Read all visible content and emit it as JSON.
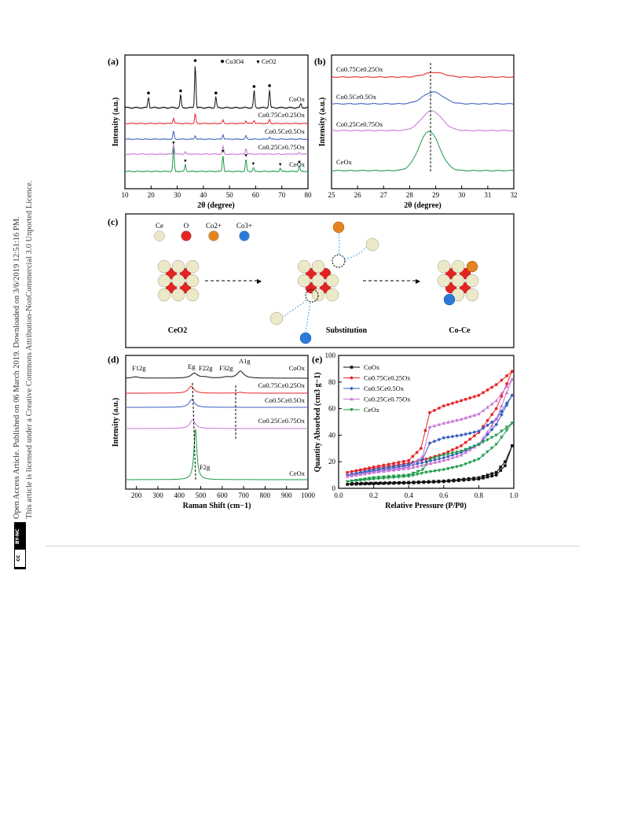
{
  "side_notice": {
    "line1": "Open Access Article. Published on 06 March 2019. Downloaded on 3/6/2019 12:51:16 PM.",
    "line2": "This article is licensed under a Creative Commons Attribution-NonCommercial 3.0 Unported Licence.",
    "badge_cc": "cc",
    "badge_by": "BY-NC"
  },
  "panels": {
    "a": {
      "label": "(a)",
      "legend_co3o4": "Co3O4",
      "legend_ceo2": "CeO2",
      "ylabel": "Intensity (a.u.)",
      "xlabel": "2θ (degree)",
      "samples": [
        "CoOx",
        "Co0.75Ce0.25Ox",
        "Co0.5Ce0.5Ox",
        "Co0.25Ce0.75Ox",
        "CeOx"
      ]
    },
    "b": {
      "label": "(b)",
      "ylabel": "Intensity (a.u.)",
      "xlabel": "2θ (degree)",
      "samples": [
        "Co0.75Ce0.25Ox",
        "Co0.5Ce0.5Ox",
        "Co0.25Ce0.75Ox",
        "CeOx"
      ]
    },
    "c": {
      "label": "(c)",
      "legend": [
        "Ce",
        "O",
        "Co2+",
        "Co3+"
      ],
      "captions": [
        "CeO2",
        "Substitution",
        "Co-Ce"
      ]
    },
    "d": {
      "label": "(d)",
      "ylabel": "Intensity (a.u.)",
      "xlabel": "Raman Shift (cm−1)",
      "modes": [
        "F12g",
        "Eg",
        "F22g",
        "F32g",
        "A1g",
        "F2g"
      ],
      "samples": [
        "CoOx",
        "Co0.75Ce0.25Ox",
        "Co0.5Ce0.5Ox",
        "Co0.25Ce0.75Ox",
        "CeOx"
      ]
    },
    "e": {
      "label": "(e)",
      "ylabel": "Quantity Absorbed (cm3 g−1)",
      "xlabel": "Relative Pressure (P/P0)",
      "samples": [
        "CoOx",
        "Co0.75Ce0.25Ox",
        "Co0.5Ce0.5Ox",
        "Co0.25Ce0.75Ox",
        "CeOx"
      ]
    }
  },
  "colors": {
    "black": "#111111",
    "red": "#e8262b",
    "blue": "#3a5fbf",
    "purple": "#c774d6",
    "green": "#1e9a4a",
    "ce_sphere": "#ebe9c8",
    "o_sphere": "#e32222",
    "co2_sphere": "#e5841f",
    "co3_sphere": "#2a7bd8"
  },
  "chart_data": [
    {
      "id": "a",
      "type": "line",
      "xlabel": "2θ (degree)",
      "ylabel": "Intensity (a.u.)",
      "xlim": [
        10,
        80
      ],
      "xticks": [
        10,
        20,
        30,
        40,
        50,
        60,
        70,
        80
      ],
      "series": [
        {
          "name": "CoOx",
          "peaks": [
            [
              19.0,
              0.25
            ],
            [
              31.3,
              0.3
            ],
            [
              36.9,
              1.0
            ],
            [
              44.8,
              0.25
            ],
            [
              59.4,
              0.4
            ],
            [
              65.3,
              0.42
            ],
            [
              77.3,
              0.1
            ]
          ]
        },
        {
          "name": "Co0.75Ce0.25Ox",
          "peaks": [
            [
              28.6,
              0.2
            ],
            [
              36.9,
              0.35
            ],
            [
              47.5,
              0.12
            ],
            [
              56.3,
              0.1
            ],
            [
              59.4,
              0.12
            ],
            [
              65.3,
              0.15
            ]
          ]
        },
        {
          "name": "Co0.5Ce0.5Ox",
          "peaks": [
            [
              28.6,
              0.35
            ],
            [
              36.9,
              0.15
            ],
            [
              47.5,
              0.2
            ],
            [
              56.3,
              0.15
            ],
            [
              65.3,
              0.1
            ]
          ]
        },
        {
          "name": "Co0.25Ce0.75Ox",
          "peaks": [
            [
              28.6,
              0.45
            ],
            [
              33.1,
              0.1
            ],
            [
              47.5,
              0.35
            ],
            [
              56.3,
              0.25
            ],
            [
              76.7,
              0.08
            ]
          ]
        },
        {
          "name": "CeOx",
          "peaks": [
            [
              28.6,
              0.9
            ],
            [
              33.1,
              0.25
            ],
            [
              47.5,
              0.6
            ],
            [
              56.3,
              0.45
            ],
            [
              59.1,
              0.15
            ],
            [
              69.4,
              0.12
            ],
            [
              76.7,
              0.2
            ]
          ]
        }
      ],
      "markers": {
        "Co3O4": [
          19.0,
          31.3,
          36.9,
          44.8,
          59.4,
          65.3
        ],
        "CeO2": [
          28.6,
          33.1,
          47.5,
          56.3,
          59.1,
          69.4,
          76.7
        ]
      }
    },
    {
      "id": "b",
      "type": "line",
      "xlabel": "2θ (degree)",
      "ylabel": "Intensity (a.u.)",
      "xlim": [
        25,
        32
      ],
      "xticks": [
        25,
        26,
        27,
        28,
        29,
        30,
        31,
        32
      ],
      "series": [
        {
          "name": "Co0.75Ce0.25Ox",
          "peak_center": 28.95,
          "height": 0.12
        },
        {
          "name": "Co0.5Ce0.5Ox",
          "peak_center": 28.9,
          "height": 0.3
        },
        {
          "name": "Co0.25Ce0.75Ox",
          "peak_center": 28.85,
          "height": 0.5
        },
        {
          "name": "CeOx",
          "peak_center": 28.75,
          "height": 1.0
        }
      ]
    },
    {
      "id": "d",
      "type": "line",
      "xlabel": "Raman Shift (cm−1)",
      "ylabel": "Intensity (a.u.)",
      "xlim": [
        150,
        1000
      ],
      "xticks": [
        200,
        300,
        400,
        500,
        600,
        700,
        800,
        900,
        1000
      ],
      "series": [
        {
          "name": "CoOx",
          "peaks": [
            [
              195,
              0.1
            ],
            [
              470,
              0.35
            ],
            [
              520,
              0.08
            ],
            [
              620,
              0.08
            ],
            [
              685,
              0.5
            ]
          ]
        },
        {
          "name": "Co0.75Ce0.25Ox",
          "peaks": [
            [
              455,
              0.4
            ],
            [
              685,
              0.05
            ]
          ]
        },
        {
          "name": "Co0.5Ce0.5Ox",
          "peaks": [
            [
              458,
              0.45
            ]
          ]
        },
        {
          "name": "Co0.25Ce0.75Ox",
          "peaks": [
            [
              462,
              0.5
            ]
          ]
        },
        {
          "name": "CeOx",
          "peaks": [
            [
              475,
              1.0
            ]
          ]
        }
      ]
    },
    {
      "id": "e",
      "type": "line",
      "xlabel": "Relative Pressure (P/P0)",
      "ylabel": "Quantity Absorbed (cm3 g−1)",
      "xlim": [
        0,
        1.0
      ],
      "ylim": [
        0,
        100
      ],
      "xticks": [
        0.0,
        0.2,
        0.4,
        0.6,
        0.8,
        1.0
      ],
      "yticks": [
        0,
        20,
        40,
        60,
        80,
        100
      ],
      "series": [
        {
          "name": "CoOx",
          "adsorption": [
            [
              0.05,
              3
            ],
            [
              0.2,
              3.5
            ],
            [
              0.4,
              4
            ],
            [
              0.6,
              5
            ],
            [
              0.8,
              7
            ],
            [
              0.9,
              10
            ],
            [
              0.95,
              17
            ],
            [
              0.99,
              32
            ]
          ],
          "desorption": [
            [
              0.99,
              32
            ],
            [
              0.95,
              20
            ],
            [
              0.9,
              12
            ],
            [
              0.8,
              8
            ],
            [
              0.6,
              5.5
            ],
            [
              0.4,
              4.5
            ],
            [
              0.05,
              3.5
            ]
          ]
        },
        {
          "name": "Co0.75Ce0.25Ox",
          "adsorption": [
            [
              0.05,
              12
            ],
            [
              0.2,
              15
            ],
            [
              0.4,
              19
            ],
            [
              0.5,
              22
            ],
            [
              0.6,
              26
            ],
            [
              0.7,
              32
            ],
            [
              0.8,
              42
            ],
            [
              0.9,
              60
            ],
            [
              0.99,
              88
            ]
          ],
          "desorption": [
            [
              0.99,
              88
            ],
            [
              0.9,
              78
            ],
            [
              0.8,
              70
            ],
            [
              0.7,
              66
            ],
            [
              0.6,
              62
            ],
            [
              0.52,
              57
            ],
            [
              0.47,
              30
            ],
            [
              0.4,
              21
            ],
            [
              0.2,
              16
            ],
            [
              0.05,
              12
            ]
          ]
        },
        {
          "name": "Co0.5Ce0.5Ox",
          "adsorption": [
            [
              0.05,
              10
            ],
            [
              0.2,
              13
            ],
            [
              0.4,
              17
            ],
            [
              0.5,
              20
            ],
            [
              0.6,
              23
            ],
            [
              0.7,
              27
            ],
            [
              0.8,
              33
            ],
            [
              0.9,
              48
            ],
            [
              0.99,
              70
            ]
          ],
          "desorption": [
            [
              0.99,
              70
            ],
            [
              0.9,
              52
            ],
            [
              0.8,
              43
            ],
            [
              0.7,
              40
            ],
            [
              0.6,
              38
            ],
            [
              0.52,
              34
            ],
            [
              0.48,
              22
            ],
            [
              0.4,
              18
            ],
            [
              0.2,
              14
            ],
            [
              0.05,
              10
            ]
          ]
        },
        {
          "name": "Co0.25Ce0.75Ox",
          "adsorption": [
            [
              0.05,
              9
            ],
            [
              0.2,
              12
            ],
            [
              0.4,
              15
            ],
            [
              0.5,
              18
            ],
            [
              0.6,
              21
            ],
            [
              0.7,
              25
            ],
            [
              0.8,
              33
            ],
            [
              0.9,
              52
            ],
            [
              0.99,
              82
            ]
          ],
          "desorption": [
            [
              0.99,
              82
            ],
            [
              0.9,
              66
            ],
            [
              0.8,
              56
            ],
            [
              0.7,
              52
            ],
            [
              0.6,
              49
            ],
            [
              0.52,
              46
            ],
            [
              0.48,
              24
            ],
            [
              0.4,
              16
            ],
            [
              0.2,
              12
            ],
            [
              0.05,
              9
            ]
          ]
        },
        {
          "name": "CeOx",
          "adsorption": [
            [
              0.05,
              5
            ],
            [
              0.2,
              7
            ],
            [
              0.4,
              9
            ],
            [
              0.5,
              12
            ],
            [
              0.6,
              14
            ],
            [
              0.7,
              17
            ],
            [
              0.8,
              22
            ],
            [
              0.9,
              33
            ],
            [
              0.99,
              49
            ]
          ],
          "desorption": [
            [
              0.99,
              49
            ],
            [
              0.9,
              40
            ],
            [
              0.8,
              33
            ],
            [
              0.7,
              28
            ],
            [
              0.6,
              25
            ],
            [
              0.52,
              22
            ],
            [
              0.48,
              14
            ],
            [
              0.4,
              10
            ],
            [
              0.2,
              8
            ],
            [
              0.05,
              5
            ]
          ]
        }
      ]
    }
  ]
}
